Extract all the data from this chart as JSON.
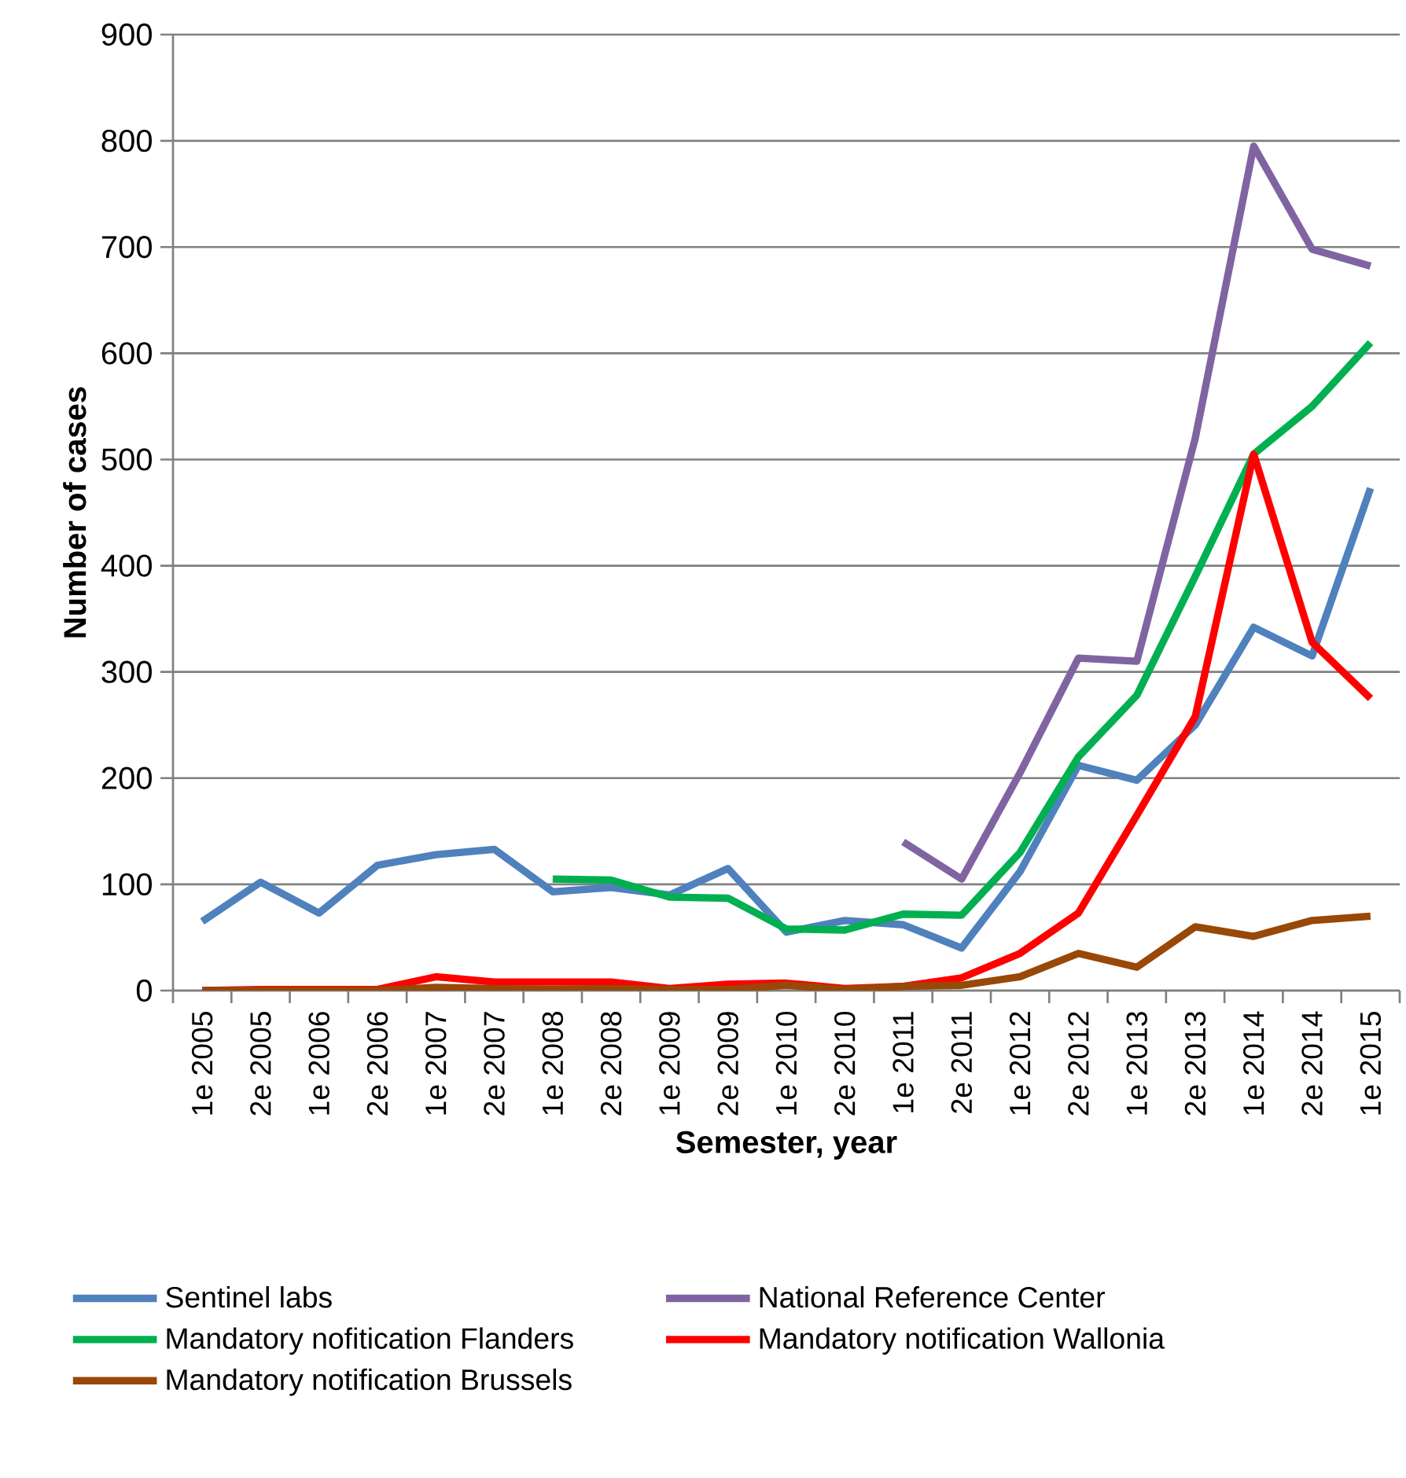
{
  "chart_data": {
    "type": "line",
    "xlabel": "Semester, year",
    "ylabel": "Number of cases",
    "categories": [
      "1e 2005",
      "2e 2005",
      "1e 2006",
      "2e 2006",
      "1e 2007",
      "2e 2007",
      "1e 2008",
      "2e 2008",
      "1e 2009",
      "2e 2009",
      "1e 2010",
      "2e 2010",
      "1e 2011",
      "2e 2011",
      "1e 2012",
      "2e 2012",
      "1e 2013",
      "2e 2013",
      "1e 2014",
      "2e 2014",
      "1e 2015"
    ],
    "series": [
      {
        "name": "Sentinel labs",
        "color": "#4f81bd",
        "values": [
          65,
          102,
          73,
          118,
          128,
          133,
          93,
          97,
          90,
          115,
          55,
          66,
          62,
          40,
          112,
          212,
          198,
          250,
          342,
          315,
          473
        ]
      },
      {
        "name": "National Reference Center",
        "color": "#8064a2",
        "values": [
          null,
          null,
          null,
          null,
          null,
          null,
          null,
          null,
          null,
          null,
          null,
          null,
          140,
          105,
          205,
          313,
          310,
          520,
          795,
          698,
          682
        ]
      },
      {
        "name": "Mandatory nofitication Flanders",
        "color": "#00b050",
        "values": [
          null,
          null,
          null,
          null,
          null,
          null,
          105,
          104,
          88,
          87,
          58,
          57,
          72,
          71,
          130,
          220,
          278,
          390,
          505,
          550,
          610
        ]
      },
      {
        "name": "Mandatory notification Wallonia",
        "color": "#ff0000",
        "values": [
          0,
          1,
          1,
          1,
          13,
          8,
          8,
          8,
          2,
          6,
          7,
          2,
          4,
          12,
          35,
          73,
          165,
          258,
          505,
          328,
          275
        ]
      },
      {
        "name": "Mandatory notification Brussels",
        "color": "#984807",
        "values": [
          0,
          0,
          0,
          0,
          3,
          2,
          1,
          2,
          1,
          1,
          5,
          1,
          4,
          5,
          13,
          35,
          22,
          60,
          51,
          66,
          70
        ]
      }
    ],
    "ylim": [
      0,
      900
    ],
    "yticks": [
      0,
      100,
      200,
      300,
      400,
      500,
      600,
      700,
      800,
      900
    ],
    "grid": "y",
    "legend": "bottom",
    "marker": "none",
    "line_style": "solid"
  }
}
